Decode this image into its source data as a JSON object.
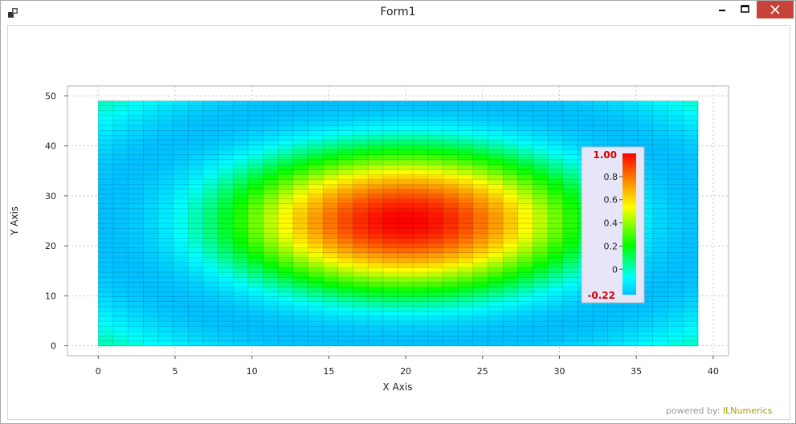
{
  "window": {
    "title": "Form1",
    "controls": {
      "minimize": "–",
      "maximize": "☐",
      "close": "✕"
    }
  },
  "chart_data": {
    "type": "heatmap",
    "xlabel": "X Axis",
    "ylabel": "Y Axis",
    "xlim": [
      -2,
      41
    ],
    "ylim": [
      -2,
      52
    ],
    "x_ticks": [
      0,
      5,
      10,
      15,
      20,
      25,
      30,
      35,
      40
    ],
    "y_ticks": [
      0,
      10,
      20,
      30,
      40,
      50
    ],
    "grid_x_range": [
      0,
      39
    ],
    "grid_y_range": [
      0,
      49
    ],
    "grid_size": [
      40,
      50
    ],
    "peak": {
      "x": 20,
      "y": 25,
      "value": 1.0
    },
    "min_value": -0.22,
    "max_value": 1.0,
    "colormap": [
      "#00bfff",
      "#00ffff",
      "#00ff00",
      "#ffff00",
      "#ff8000",
      "#ff0000"
    ],
    "grid": true,
    "colorbar": {
      "placement": "right",
      "max_label": "1.00",
      "min_label": "-0.22",
      "ticks": [
        {
          "value": 0.8,
          "label": "0.8"
        },
        {
          "value": 0.6,
          "label": "0.6"
        },
        {
          "value": 0.4,
          "label": "0.4"
        },
        {
          "value": 0.2,
          "label": "0.2"
        },
        {
          "value": 0.0,
          "label": "0"
        }
      ]
    }
  },
  "footer": {
    "powered_prefix": "powered by: ",
    "brand": "ILNumerics"
  }
}
